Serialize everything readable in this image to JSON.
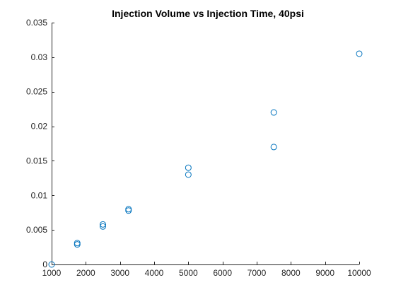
{
  "chart_data": {
    "type": "scatter",
    "title": "Injection Volume vs Injection Time, 40psi",
    "xlabel": "",
    "ylabel": "",
    "xlim": [
      1000,
      10000
    ],
    "ylim": [
      0,
      0.035
    ],
    "xticks": [
      1000,
      2000,
      3000,
      4000,
      5000,
      6000,
      7000,
      8000,
      9000,
      10000
    ],
    "xtick_labels": [
      "1000",
      "2000",
      "3000",
      "4000",
      "5000",
      "6000",
      "7000",
      "8000",
      "9000",
      "10000"
    ],
    "yticks": [
      0,
      0.005,
      0.01,
      0.015,
      0.02,
      0.025,
      0.03,
      0.035
    ],
    "ytick_labels": [
      "0",
      "0.005",
      "0.01",
      "0.015",
      "0.02",
      "0.025",
      "0.03",
      "0.035"
    ],
    "grid": false,
    "marker": "circle-open",
    "marker_color": "#0072BD",
    "axis_color": "#262626",
    "series": [
      {
        "x": [
          1000,
          1750,
          1750,
          2500,
          2500,
          3250,
          3250,
          5000,
          5000,
          7500,
          7500,
          10000
        ],
        "y": [
          0.0,
          0.0029,
          0.0031,
          0.0055,
          0.0058,
          0.0078,
          0.008,
          0.013,
          0.014,
          0.017,
          0.022,
          0.0305
        ]
      }
    ]
  }
}
